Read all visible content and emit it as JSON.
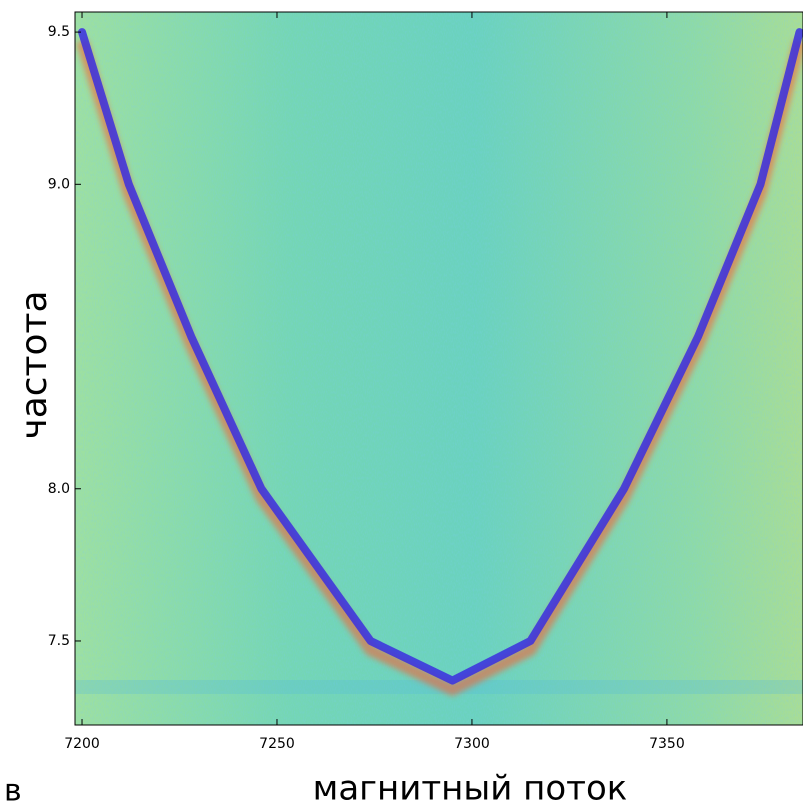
{
  "chart_data": {
    "type": "line",
    "xlabel": "магнитный поток",
    "ylabel": "частота",
    "corner_text": "в",
    "x": [
      7200,
      7212,
      7228,
      7246,
      7274,
      7295,
      7315,
      7339,
      7358,
      7374,
      7384
    ],
    "series": [
      {
        "color": "#3a2ee0",
        "values": [
          9.5,
          9.0,
          8.5,
          8.0,
          7.5,
          7.37,
          7.5,
          8.0,
          8.5,
          9.0,
          9.5
        ]
      }
    ],
    "xlim": [
      7198.2,
      7384.9
    ],
    "ylim": [
      7.224,
      9.566
    ],
    "xticks": [
      7200,
      7250,
      7300,
      7350
    ],
    "yticks": [
      7.5,
      {
        "value": 8,
        "label": "8.0"
      },
      {
        "value": 9,
        "label": "9.0"
      },
      9.5
    ]
  }
}
